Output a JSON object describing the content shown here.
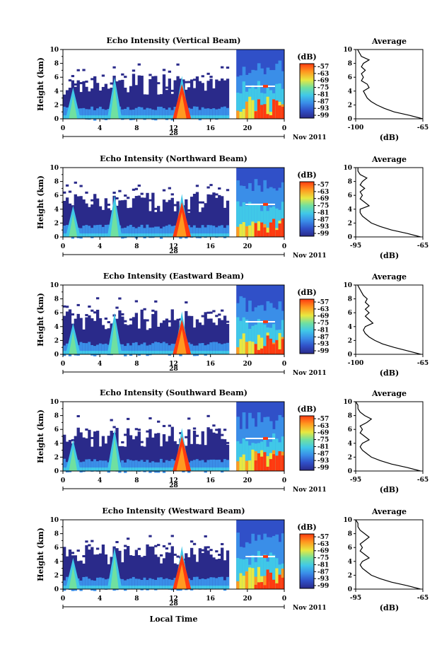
{
  "chart_data": {
    "type": "heatmap",
    "shared": {
      "x_ticks": [
        "0",
        "4",
        "8",
        "12",
        "16",
        "20",
        "0"
      ],
      "x_range_hours": [
        0,
        24
      ],
      "y_ticks": [
        "0",
        "2",
        "4",
        "6",
        "8",
        "10"
      ],
      "y_range_km": [
        0,
        10
      ],
      "ylabel": "Height (km)",
      "date_day": "28",
      "date_tail": "Nov 2011",
      "xlabel": "Local Time",
      "colorbar_unit": "(dB)",
      "colorbar_ticks": [
        "-57",
        "-63",
        "-69",
        "-75",
        "-81",
        "-87",
        "-93",
        "-99"
      ],
      "colorbar_range_db": [
        -99,
        -57
      ],
      "average_title": "Average",
      "average_xlabel": "(dB)",
      "colors": {
        "low": "#2a2a8a",
        "mid": "#40c8e8",
        "high": "#ff3a10",
        "axes": "#000000"
      }
    },
    "panels": [
      {
        "title": "Echo Intensity (Vertical Beam)",
        "avg_ticks": [
          "-100",
          "-65"
        ],
        "avg_xrange_db": [
          -100,
          -65
        ],
        "avg_profile": [
          {
            "h": 0.0,
            "db": -65
          },
          {
            "h": 0.5,
            "db": -72
          },
          {
            "h": 1.0,
            "db": -80
          },
          {
            "h": 1.5,
            "db": -85
          },
          {
            "h": 2.0,
            "db": -89
          },
          {
            "h": 2.5,
            "db": -92
          },
          {
            "h": 3.0,
            "db": -94
          },
          {
            "h": 3.5,
            "db": -95
          },
          {
            "h": 4.0,
            "db": -96
          },
          {
            "h": 4.5,
            "db": -93
          },
          {
            "h": 5.0,
            "db": -94
          },
          {
            "h": 5.5,
            "db": -97
          },
          {
            "h": 6.0,
            "db": -96
          },
          {
            "h": 6.5,
            "db": -97
          },
          {
            "h": 7.0,
            "db": -95
          },
          {
            "h": 7.5,
            "db": -97
          },
          {
            "h": 8.0,
            "db": -96
          },
          {
            "h": 8.5,
            "db": -93
          },
          {
            "h": 9.0,
            "db": -97
          },
          {
            "h": 9.5,
            "db": -98
          },
          {
            "h": 10.0,
            "db": -99
          }
        ]
      },
      {
        "title": "Echo Intensity (Northward Beam)",
        "avg_ticks": [
          "-95",
          "-65"
        ],
        "avg_xrange_db": [
          -95,
          -65
        ],
        "avg_profile": [
          {
            "h": 0.0,
            "db": -66
          },
          {
            "h": 0.5,
            "db": -72
          },
          {
            "h": 1.0,
            "db": -79
          },
          {
            "h": 1.5,
            "db": -84
          },
          {
            "h": 2.0,
            "db": -88
          },
          {
            "h": 2.5,
            "db": -90
          },
          {
            "h": 3.0,
            "db": -92
          },
          {
            "h": 3.5,
            "db": -93
          },
          {
            "h": 4.0,
            "db": -93
          },
          {
            "h": 4.5,
            "db": -89
          },
          {
            "h": 5.0,
            "db": -91
          },
          {
            "h": 5.5,
            "db": -93
          },
          {
            "h": 6.0,
            "db": -92
          },
          {
            "h": 6.5,
            "db": -93
          },
          {
            "h": 7.0,
            "db": -91
          },
          {
            "h": 7.5,
            "db": -93
          },
          {
            "h": 8.0,
            "db": -92
          },
          {
            "h": 8.5,
            "db": -90
          },
          {
            "h": 9.0,
            "db": -93
          },
          {
            "h": 9.5,
            "db": -94
          },
          {
            "h": 10.0,
            "db": -94
          }
        ]
      },
      {
        "title": "Echo Intensity (Eastward Beam)",
        "avg_ticks": [
          "-100",
          "-65"
        ],
        "avg_xrange_db": [
          -100,
          -65
        ],
        "avg_profile": [
          {
            "h": 0.0,
            "db": -66
          },
          {
            "h": 0.5,
            "db": -73
          },
          {
            "h": 1.0,
            "db": -80
          },
          {
            "h": 1.5,
            "db": -86
          },
          {
            "h": 2.0,
            "db": -90
          },
          {
            "h": 2.5,
            "db": -93
          },
          {
            "h": 3.0,
            "db": -95
          },
          {
            "h": 3.5,
            "db": -96
          },
          {
            "h": 4.0,
            "db": -95
          },
          {
            "h": 4.5,
            "db": -91
          },
          {
            "h": 5.0,
            "db": -93
          },
          {
            "h": 5.5,
            "db": -95
          },
          {
            "h": 6.0,
            "db": -93
          },
          {
            "h": 6.5,
            "db": -95
          },
          {
            "h": 7.0,
            "db": -93
          },
          {
            "h": 7.5,
            "db": -95
          },
          {
            "h": 8.0,
            "db": -94
          },
          {
            "h": 8.5,
            "db": -96
          },
          {
            "h": 9.0,
            "db": -97
          },
          {
            "h": 9.5,
            "db": -98
          },
          {
            "h": 10.0,
            "db": -99
          }
        ]
      },
      {
        "title": "Echo Intensity (Southward Beam)",
        "avg_ticks": [
          "-95",
          "-65"
        ],
        "avg_xrange_db": [
          -95,
          -65
        ],
        "avg_profile": [
          {
            "h": 0.0,
            "db": -66
          },
          {
            "h": 0.5,
            "db": -72
          },
          {
            "h": 1.0,
            "db": -79
          },
          {
            "h": 1.5,
            "db": -84
          },
          {
            "h": 2.0,
            "db": -88
          },
          {
            "h": 2.5,
            "db": -90
          },
          {
            "h": 3.0,
            "db": -92
          },
          {
            "h": 3.5,
            "db": -93
          },
          {
            "h": 4.0,
            "db": -92
          },
          {
            "h": 4.5,
            "db": -89
          },
          {
            "h": 5.0,
            "db": -91
          },
          {
            "h": 5.5,
            "db": -93
          },
          {
            "h": 6.0,
            "db": -92
          },
          {
            "h": 6.5,
            "db": -93
          },
          {
            "h": 7.0,
            "db": -90
          },
          {
            "h": 7.5,
            "db": -88
          },
          {
            "h": 8.0,
            "db": -91
          },
          {
            "h": 8.5,
            "db": -93
          },
          {
            "h": 9.0,
            "db": -94
          },
          {
            "h": 9.5,
            "db": -94
          },
          {
            "h": 10.0,
            "db": -95
          }
        ]
      },
      {
        "title": "Echo Intensity (Westward Beam)",
        "avg_ticks": [
          "-95",
          "-65"
        ],
        "avg_xrange_db": [
          -95,
          -65
        ],
        "avg_profile": [
          {
            "h": 0.0,
            "db": -66
          },
          {
            "h": 0.5,
            "db": -72
          },
          {
            "h": 1.0,
            "db": -79
          },
          {
            "h": 1.5,
            "db": -84
          },
          {
            "h": 2.0,
            "db": -88
          },
          {
            "h": 2.5,
            "db": -90
          },
          {
            "h": 3.0,
            "db": -92
          },
          {
            "h": 3.5,
            "db": -93
          },
          {
            "h": 4.0,
            "db": -92
          },
          {
            "h": 4.5,
            "db": -89
          },
          {
            "h": 5.0,
            "db": -91
          },
          {
            "h": 5.5,
            "db": -93
          },
          {
            "h": 6.0,
            "db": -92
          },
          {
            "h": 6.5,
            "db": -93
          },
          {
            "h": 7.0,
            "db": -91
          },
          {
            "h": 7.5,
            "db": -89
          },
          {
            "h": 8.0,
            "db": -91
          },
          {
            "h": 8.5,
            "db": -93
          },
          {
            "h": 9.0,
            "db": -94
          },
          {
            "h": 9.5,
            "db": -94
          },
          {
            "h": 10.0,
            "db": -95
          }
        ]
      }
    ]
  }
}
